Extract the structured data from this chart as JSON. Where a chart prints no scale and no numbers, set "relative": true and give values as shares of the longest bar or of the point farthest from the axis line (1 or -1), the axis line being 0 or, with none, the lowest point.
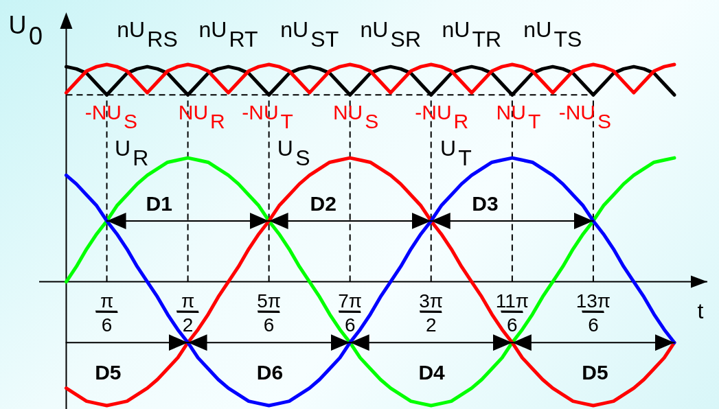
{
  "chart_data": {
    "type": "line",
    "relative": true,
    "xlabel": "t",
    "ylabel": "U$_{0}$",
    "x": [
      0,
      0.131,
      0.262,
      0.393,
      0.524,
      0.654,
      0.785,
      0.916,
      1.047,
      1.178,
      1.309,
      1.44,
      1.571,
      1.702,
      1.833,
      1.963,
      2.094,
      2.225,
      2.356,
      2.487,
      2.618,
      2.749,
      2.88,
      3.011,
      3.142,
      3.272,
      3.403,
      3.534,
      3.665,
      3.796,
      3.927,
      4.058,
      4.189,
      4.32,
      4.451,
      4.581,
      4.712,
      4.843,
      4.974,
      5.105,
      5.236,
      5.367,
      5.498,
      5.629,
      5.76,
      5.89,
      6.021,
      6.152,
      6.283,
      6.414,
      6.545,
      6.676,
      6.807,
      6.938,
      7.069,
      7.199,
      7.33,
      7.461,
      7.592,
      7.723,
      7.854
    ],
    "xlim": [
      -0.35,
      8.28
    ],
    "xticks": [
      {
        "value": 0.524,
        "label": "π/6"
      },
      {
        "value": 1.571,
        "label": "π/2"
      },
      {
        "value": 2.618,
        "label": "5π/6"
      },
      {
        "value": 3.665,
        "label": "7π/6"
      },
      {
        "value": 4.712,
        "label": "3π/2"
      },
      {
        "value": 5.76,
        "label": "11π/6"
      },
      {
        "value": 6.807,
        "label": "13π/6"
      }
    ],
    "series": [
      {
        "color": "#000000",
        "values": [
          0.99,
          0.98,
          0.96,
          0.91,
          0.86,
          0.91,
          0.96,
          0.98,
          0.99,
          0.98,
          0.96,
          0.91,
          0.86,
          0.91,
          0.96,
          0.98,
          0.99,
          0.98,
          0.96,
          0.91,
          0.86,
          0.91,
          0.96,
          0.98,
          0.99,
          0.98,
          0.96,
          0.91,
          0.86,
          0.91,
          0.96,
          0.98,
          0.99,
          0.98,
          0.96,
          0.91,
          0.86,
          0.91,
          0.96,
          0.98,
          0.99,
          0.98,
          0.96,
          0.91,
          0.86,
          0.91,
          0.96,
          0.98,
          0.99,
          0.98,
          0.96,
          0.91,
          0.86,
          0.91,
          0.96,
          0.98,
          0.99,
          0.98,
          0.96,
          0.91,
          0.86
        ]
      },
      {
        "color": "#ff0000",
        "values": [
          0.87,
          0.92,
          0.97,
          0.99,
          1,
          0.99,
          0.97,
          0.92,
          0.87,
          0.92,
          0.97,
          0.99,
          1,
          0.99,
          0.97,
          0.92,
          0.87,
          0.92,
          0.97,
          0.99,
          1,
          0.99,
          0.97,
          0.92,
          0.87,
          0.92,
          0.97,
          0.99,
          1,
          0.99,
          0.97,
          0.92,
          0.87,
          0.92,
          0.97,
          0.99,
          1,
          0.99,
          0.97,
          0.92,
          0.87,
          0.92,
          0.97,
          0.99,
          1,
          0.99,
          0.97,
          0.92,
          0.87,
          0.92,
          0.97,
          0.99,
          1,
          0.99,
          0.97,
          0.92,
          0.87,
          0.92,
          0.97,
          0.99,
          1
        ]
      },
      {
        "name": "U$_{R}$",
        "color": "#00ff00",
        "values": [
          0,
          0.07,
          0.15,
          0.22,
          0.28,
          0.35,
          0.4,
          0.45,
          0.49,
          0.52,
          0.55,
          0.56,
          0.57,
          0.56,
          0.55,
          0.52,
          0.49,
          0.45,
          0.4,
          0.35,
          0.28,
          0.22,
          0.15,
          0.07,
          0,
          -0.07,
          -0.15,
          -0.22,
          -0.28,
          -0.35,
          -0.4,
          -0.45,
          -0.49,
          -0.52,
          -0.55,
          -0.56,
          -0.57,
          -0.56,
          -0.55,
          -0.52,
          -0.49,
          -0.45,
          -0.4,
          -0.35,
          -0.28,
          -0.22,
          -0.15,
          -0.07,
          0,
          0.07,
          0.15,
          0.22,
          0.28,
          0.35,
          0.4,
          0.45,
          0.49,
          0.52,
          0.55,
          0.56,
          0.57
        ]
      },
      {
        "name": "U$_{S}$",
        "color": "#ff0000",
        "values": [
          -0.49,
          -0.52,
          -0.55,
          -0.56,
          -0.57,
          -0.56,
          -0.55,
          -0.52,
          -0.49,
          -0.45,
          -0.4,
          -0.35,
          -0.28,
          -0.22,
          -0.15,
          -0.07,
          0,
          0.07,
          0.15,
          0.22,
          0.28,
          0.35,
          0.4,
          0.45,
          0.49,
          0.52,
          0.55,
          0.56,
          0.57,
          0.56,
          0.55,
          0.52,
          0.49,
          0.45,
          0.4,
          0.35,
          0.28,
          0.22,
          0.15,
          0.07,
          0,
          -0.07,
          -0.15,
          -0.22,
          -0.28,
          -0.35,
          -0.4,
          -0.45,
          -0.49,
          -0.52,
          -0.55,
          -0.56,
          -0.57,
          -0.56,
          -0.55,
          -0.52,
          -0.49,
          -0.45,
          -0.4,
          -0.35,
          -0.28
        ]
      },
      {
        "name": "U$_{T}$",
        "color": "#0000ff",
        "values": [
          0.49,
          0.45,
          0.4,
          0.35,
          0.28,
          0.22,
          0.15,
          0.07,
          0,
          -0.07,
          -0.15,
          -0.22,
          -0.28,
          -0.35,
          -0.4,
          -0.45,
          -0.49,
          -0.52,
          -0.55,
          -0.56,
          -0.57,
          -0.56,
          -0.55,
          -0.52,
          -0.49,
          -0.45,
          -0.4,
          -0.35,
          -0.28,
          -0.22,
          -0.15,
          -0.07,
          0,
          0.07,
          0.15,
          0.22,
          0.28,
          0.35,
          0.4,
          0.45,
          0.49,
          0.52,
          0.55,
          0.56,
          0.57,
          0.56,
          0.55,
          0.52,
          0.49,
          0.45,
          0.4,
          0.35,
          0.28,
          0.22,
          0.15,
          0.07,
          0,
          -0.07,
          -0.15,
          -0.22,
          -0.28
        ]
      },
      {
        "color": "#000000",
        "x": [
          0.524,
          2.618
        ],
        "values": [
          0.28,
          0.28
        ]
      },
      {
        "color": "#000000",
        "x": [
          2.618,
          4.712
        ],
        "values": [
          0.28,
          0.28
        ]
      },
      {
        "color": "#000000",
        "x": [
          4.712,
          6.807
        ],
        "values": [
          0.28,
          0.28
        ]
      },
      {
        "color": "#000000",
        "x": [
          0,
          1.571
        ],
        "values": [
          -0.28,
          -0.28
        ]
      },
      {
        "color": "#000000",
        "x": [
          1.571,
          3.665
        ],
        "values": [
          -0.28,
          -0.28
        ]
      },
      {
        "color": "#000000",
        "x": [
          3.665,
          5.76
        ],
        "values": [
          -0.28,
          -0.28
        ]
      },
      {
        "color": "#000000",
        "x": [
          5.76,
          7.854
        ],
        "values": [
          -0.28,
          -0.28
        ]
      }
    ],
    "ref_lines": [
      {
        "axis": "y",
        "value": 0.86,
        "color": "#000000",
        "line_style": "dashed"
      },
      {
        "axis": "x",
        "value": 0.524,
        "color": "#000000",
        "line_style": "dashed"
      },
      {
        "axis": "x",
        "value": 1.571,
        "color": "#000000",
        "line_style": "dashed"
      },
      {
        "axis": "x",
        "value": 2.618,
        "color": "#000000",
        "line_style": "dashed"
      },
      {
        "axis": "x",
        "value": 3.665,
        "color": "#000000",
        "line_style": "dashed"
      },
      {
        "axis": "x",
        "value": 4.712,
        "color": "#000000",
        "line_style": "dashed"
      },
      {
        "axis": "x",
        "value": 5.76,
        "color": "#000000",
        "line_style": "dashed"
      },
      {
        "axis": "x",
        "value": 6.807,
        "color": "#000000",
        "line_style": "dashed"
      }
    ],
    "annotations": [
      {
        "text": "nU$_{RS}$",
        "x": 1.047,
        "y": 0.99
      },
      {
        "text": "nU$_{RT}$",
        "x": 2.094,
        "y": 0.99
      },
      {
        "text": "nU$_{ST}$",
        "x": 3.142,
        "y": 0.99
      },
      {
        "text": "nU$_{SR}$",
        "x": 4.189,
        "y": 0.99
      },
      {
        "text": "nU$_{TR}$",
        "x": 5.236,
        "y": 0.99
      },
      {
        "text": "nU$_{TS}$",
        "x": 6.283,
        "y": 0.99
      },
      {
        "text": "-NU$_{S}$",
        "x": 0.58,
        "y": 0.86
      },
      {
        "text": "NU$_{R}$",
        "x": 1.75,
        "y": 0.86
      },
      {
        "text": "-NU$_{T}$",
        "x": 2.6,
        "y": 0.86
      },
      {
        "text": "NU$_{S}$",
        "x": 3.74,
        "y": 0.86
      },
      {
        "text": "-NU$_{R}$",
        "x": 4.85,
        "y": 0.86
      },
      {
        "text": "NU$_{T}$",
        "x": 5.84,
        "y": 0.86
      },
      {
        "text": "-NU$_{S}$",
        "x": 6.7,
        "y": 0.86
      },
      {
        "text": "D1",
        "x": 1.2,
        "y": 0.28
      },
      {
        "text": "D2",
        "x": 3.32,
        "y": 0.28
      },
      {
        "text": "D3",
        "x": 5.41,
        "y": 0.28
      },
      {
        "text": "D5",
        "x": 0.54,
        "y": -0.28
      },
      {
        "text": "D6",
        "x": 2.63,
        "y": -0.28
      },
      {
        "text": "D4",
        "x": 4.72,
        "y": -0.28
      },
      {
        "text": "D5",
        "x": 6.83,
        "y": -0.28
      }
    ]
  }
}
